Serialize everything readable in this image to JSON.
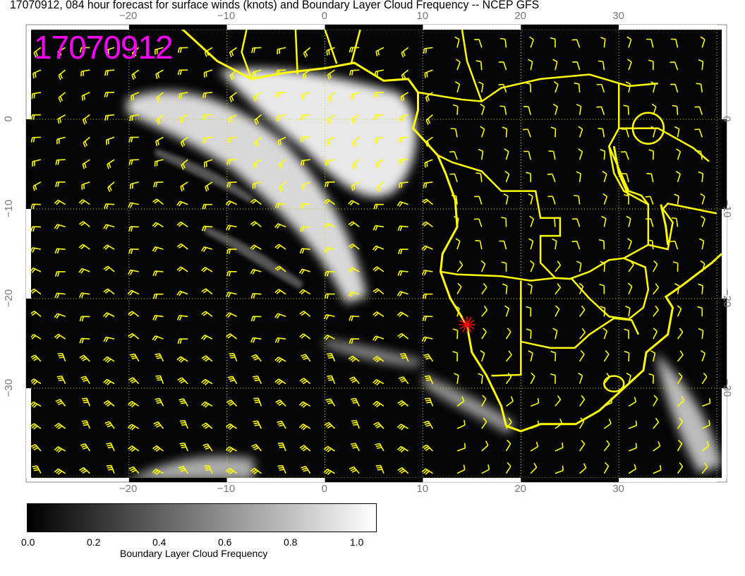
{
  "title": "17070912, 084 hour forecast for surface winds (knots) and Boundary Layer Cloud Frequency -- NCEP GFS",
  "stamp": "17070912",
  "map": {
    "lon_range": [
      -30,
      40.5
    ],
    "lat_range": [
      -40,
      10
    ],
    "lon_ticks": [
      "−20",
      "−10",
      "0",
      "10",
      "20",
      "30"
    ],
    "lat_ticks": [
      "0",
      "−10",
      "−20",
      "−30"
    ],
    "coast_color": "#ffff00",
    "barb_color": "#ffff00",
    "marker": {
      "lon": 14.5,
      "lat": -22.9,
      "color": "#ff0000",
      "symbol": "star"
    }
  },
  "colorbar": {
    "label": "Boundary Layer Cloud Frequency",
    "ticks": [
      "0.0",
      "0.2",
      "0.4",
      "0.6",
      "0.8",
      "1.0"
    ],
    "range": [
      0,
      1
    ],
    "colormap": "black-to-white"
  }
}
